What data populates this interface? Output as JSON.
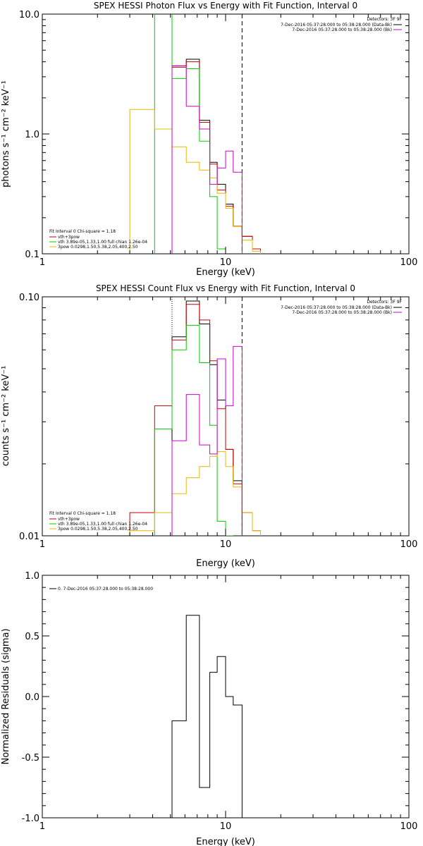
{
  "chart_data": [
    {
      "type": "line",
      "title": "SPEX HESSI Photon Flux vs Energy with Fit Function, Interval 0",
      "xlabel": "Energy (keV)",
      "ylabel": "photons s⁻¹ cm⁻² keV⁻¹",
      "xlog": true,
      "ylog": true,
      "xlim": [
        1,
        100
      ],
      "ylim": [
        0.1,
        10
      ],
      "xticks": [
        "1",
        "10",
        "100"
      ],
      "yticks": [
        "0.1",
        "1.0",
        "10.0"
      ],
      "vlines": [
        {
          "x": 5.1,
          "style": "dotted"
        },
        {
          "x": 12.3,
          "style": "dashed"
        }
      ],
      "legend_topright": {
        "header": "Detectors: 3F 9F",
        "entries": [
          {
            "label": "7-Dec-2016 05:37:28.000 to 05:38:28.000 (Data-Bk)",
            "color": "#000000"
          },
          {
            "label": "7-Dec-2016 05:37:28.000 to 05:38:28.000 (Bk)",
            "color": "#cc00cc"
          }
        ]
      },
      "legend_bottomleft": {
        "header": "Fit Interval 0   Chi-square = 1.18",
        "entries": [
          {
            "label": "vth+3pow",
            "color": "#cc0000"
          },
          {
            "label": "vth 3.89e-05,1.33,1.00  full chian 1.26e-04",
            "color": "#00cc00"
          },
          {
            "label": "3pow 0.0298,1.50,5.38,2.05,400,2.50",
            "color": "#e8b800"
          }
        ]
      },
      "series": [
        {
          "name": "Data-Bk",
          "color": "#000000",
          "edges": [
            5.1,
            6.1,
            7.2,
            8.2,
            9.0,
            10.0,
            11.0,
            12.3,
            14.0,
            15.5
          ],
          "values": [
            3.7,
            4.2,
            1.3,
            0.58,
            0.38,
            0.26,
            0.17,
            0.14,
            0.11
          ]
        },
        {
          "name": "vth+3pow",
          "color": "#cc0000",
          "edges": [
            5.1,
            6.1,
            7.2,
            8.2,
            9.0,
            10.0,
            11.0,
            12.3,
            14.0,
            15.5
          ],
          "values": [
            3.6,
            4.0,
            1.25,
            0.56,
            0.34,
            0.25,
            0.17,
            0.14,
            0.11
          ]
        },
        {
          "name": "vth",
          "color": "#00cc00",
          "edges": [
            4.1,
            5.1,
            6.1,
            7.2,
            8.2,
            9.0,
            10.0
          ],
          "values": [
            20,
            2.9,
            3.5,
            0.87,
            0.3,
            0.11
          ]
        },
        {
          "name": "3pow",
          "color": "#e8b800",
          "edges": [
            3.0,
            4.1,
            5.1,
            6.1,
            7.2,
            8.2,
            9.0,
            10.0,
            11.0,
            12.3,
            14.0,
            15.5
          ],
          "values": [
            1.6,
            1.1,
            0.78,
            0.58,
            0.5,
            0.43,
            0.32,
            0.24,
            0.17,
            0.13,
            0.105
          ]
        },
        {
          "name": "Bk",
          "color": "#cc00cc",
          "edges": [
            5.1,
            6.1,
            7.2,
            8.2,
            9.0,
            10.0,
            11.0,
            12.3
          ],
          "values": [
            3.7,
            1.7,
            1.1,
            0.38,
            0.52,
            0.72,
            0.48
          ]
        }
      ]
    },
    {
      "type": "line",
      "title": "SPEX HESSI Count Flux vs Energy with Fit Function, Interval 0",
      "xlabel": "Energy (keV)",
      "ylabel": "counts s⁻¹ cm⁻² keV⁻¹",
      "xlog": true,
      "ylog": true,
      "xlim": [
        1,
        100
      ],
      "ylim": [
        0.01,
        0.1
      ],
      "xticks": [
        "1",
        "10",
        "100"
      ],
      "yticks": [
        "0.01",
        "0.10"
      ],
      "vlines": [
        {
          "x": 5.1,
          "style": "dotted"
        },
        {
          "x": 12.3,
          "style": "dashed"
        }
      ],
      "legend_topright": {
        "header": "Detectors: 3F 9F",
        "entries": [
          {
            "label": "7-Dec-2016 05:37:28.000 to 05:38:28.000 (Data-Bk)",
            "color": "#000000"
          },
          {
            "label": "7-Dec-2016 05:37:28.000 to 05:38:28.000 (Bk)",
            "color": "#cc00cc"
          }
        ]
      },
      "legend_bottomleft": {
        "header": "Fit Interval 0   Chi-square = 1.18",
        "entries": [
          {
            "label": "vth+3pow",
            "color": "#cc0000"
          },
          {
            "label": "vth 3.89e-05,1.33,1.00  full chian 1.26e-04",
            "color": "#00cc00"
          },
          {
            "label": "3pow 0.0298,1.50,5.38,2.05,400,2.50",
            "color": "#e8b800"
          }
        ]
      },
      "series": [
        {
          "name": "Data-Bk",
          "color": "#000000",
          "edges": [
            5.1,
            6.1,
            7.2,
            8.2,
            9.0,
            10.0,
            11.0,
            12.3
          ],
          "values": [
            0.068,
            0.096,
            0.077,
            0.052,
            0.037,
            0.023,
            0.017
          ]
        },
        {
          "name": "vth+3pow",
          "color": "#cc0000",
          "edges": [
            3.0,
            4.1,
            5.1,
            6.1,
            7.2,
            8.2,
            9.0,
            10.0,
            11.0,
            12.3,
            14.0,
            15.5
          ],
          "values": [
            0.0125,
            0.035,
            0.066,
            0.093,
            0.08,
            0.054,
            0.034,
            0.023,
            0.0165,
            0.0125,
            0.0105
          ]
        },
        {
          "name": "vth",
          "color": "#00cc00",
          "edges": [
            4.1,
            5.1,
            6.1,
            7.2,
            8.2,
            9.0,
            10.0,
            11.0
          ],
          "values": [
            0.028,
            0.06,
            0.076,
            0.053,
            0.029,
            0.0115,
            0.01
          ]
        },
        {
          "name": "3pow",
          "color": "#e8b800",
          "edges": [
            3.0,
            4.1,
            5.1,
            6.1,
            7.2,
            8.2,
            9.0,
            10.0,
            11.0,
            12.3,
            14.0,
            15.5
          ],
          "values": [
            0.0105,
            0.0125,
            0.015,
            0.0175,
            0.0195,
            0.0215,
            0.0225,
            0.0195,
            0.016,
            0.0125,
            0.0105
          ]
        },
        {
          "name": "Bk",
          "color": "#cc00cc",
          "edges": [
            5.1,
            6.1,
            7.2,
            8.2,
            9.0,
            10.0,
            11.0,
            12.3
          ],
          "values": [
            0.025,
            0.039,
            0.024,
            0.022,
            0.055,
            0.035,
            0.062
          ]
        }
      ]
    },
    {
      "type": "line",
      "title": "",
      "xlabel": "Energy (keV)",
      "ylabel": "Normalized Residuals (sigma)",
      "xlog": true,
      "xlim": [
        1,
        100
      ],
      "ylim": [
        -1.0,
        1.0
      ],
      "xticks": [
        "1",
        "10",
        "100"
      ],
      "yticks": [
        "-1.0",
        "-0.5",
        "0.0",
        "0.5",
        "1.0"
      ],
      "legend_topleft": {
        "entries": [
          {
            "label": "0.  7-Dec-2016 05:37:28.000 to 05:38:28.000",
            "color": "#000000"
          }
        ]
      },
      "series": [
        {
          "name": "0.",
          "color": "#000000",
          "edges": [
            5.1,
            6.1,
            7.2,
            8.2,
            9.0,
            10.0,
            11.0,
            12.3
          ],
          "values": [
            -0.2,
            0.67,
            -0.75,
            0.2,
            0.33,
            0.0,
            -0.07
          ]
        }
      ]
    }
  ]
}
